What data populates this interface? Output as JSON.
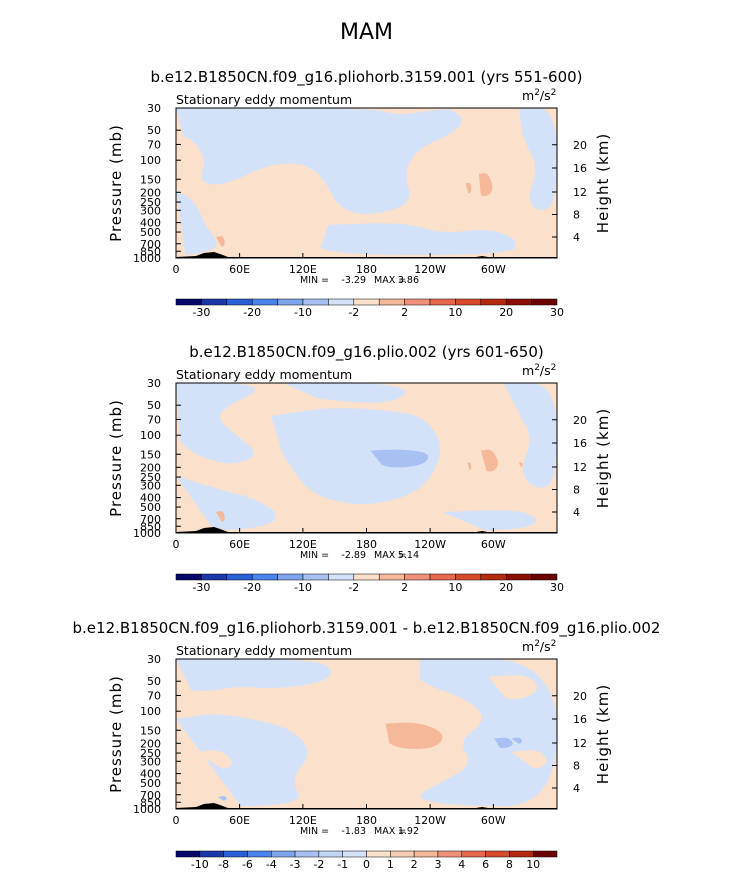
{
  "page_title": "MAM",
  "units_base": "m",
  "units_sup1": "2",
  "units_mid": "/s",
  "units_sup2": "2",
  "chart_data": [
    {
      "type": "heatmap",
      "title": "b.e12.B1850CN.f09_g16.pliohorb.3159.001 (yrs 551-600)",
      "left_string": "Stationary eddy momentum",
      "units": "m2/s2",
      "xlabel": "",
      "ylabel": "Pressure (mb)",
      "ylabel_right": "Height (km)",
      "xticks": [
        "0",
        "60E",
        "120E",
        "180",
        "120W",
        "60W"
      ],
      "yticks": [
        "30",
        "50",
        "70",
        "100",
        "150",
        "200",
        "250",
        "300",
        "400",
        "500",
        "700",
        "850",
        "1000"
      ],
      "yticks_right": [
        "4",
        "8",
        "12",
        "16",
        "20"
      ],
      "min_label": "MIN =",
      "min_value": "-3.29",
      "max_label": "MAX =",
      "max_value": "3.86",
      "colorbar": {
        "labels": [
          "-30",
          "-20",
          "-10",
          "-2",
          "2",
          "10",
          "20",
          "30"
        ],
        "colors": [
          "#08086b",
          "#1c38a8",
          "#2a5fd6",
          "#4a84ec",
          "#7ea4ee",
          "#a9c0f3",
          "#d3e2f8",
          "#fbe0cc",
          "#f5b898",
          "#f0907a",
          "#e8684e",
          "#d84a2c",
          "#b32a10",
          "#8a0f02",
          "#6b0000"
        ]
      }
    },
    {
      "type": "heatmap",
      "title": "b.e12.B1850CN.f09_g16.plio.002 (yrs 601-650)",
      "left_string": "Stationary eddy momentum",
      "units": "m2/s2",
      "xlabel": "",
      "ylabel": "Pressure (mb)",
      "ylabel_right": "Height (km)",
      "xticks": [
        "0",
        "60E",
        "120E",
        "180",
        "120W",
        "60W"
      ],
      "yticks": [
        "30",
        "50",
        "70",
        "100",
        "150",
        "200",
        "250",
        "300",
        "400",
        "500",
        "700",
        "850",
        "1000"
      ],
      "yticks_right": [
        "4",
        "8",
        "12",
        "16",
        "20"
      ],
      "min_label": "MIN =",
      "min_value": "-2.89",
      "max_label": "MAX =",
      "max_value": "5.14",
      "colorbar": {
        "labels": [
          "-30",
          "-20",
          "-10",
          "-2",
          "2",
          "10",
          "20",
          "30"
        ],
        "colors": [
          "#08086b",
          "#1c38a8",
          "#2a5fd6",
          "#4a84ec",
          "#7ea4ee",
          "#a9c0f3",
          "#d3e2f8",
          "#fbe0cc",
          "#f5b898",
          "#f0907a",
          "#e8684e",
          "#d84a2c",
          "#b32a10",
          "#8a0f02",
          "#6b0000"
        ]
      }
    },
    {
      "type": "heatmap",
      "title": "b.e12.B1850CN.f09_g16.pliohorb.3159.001 - b.e12.B1850CN.f09_g16.plio.002",
      "left_string": "Stationary eddy momentum",
      "units": "m2/s2",
      "xlabel": "",
      "ylabel": "Pressure (mb)",
      "ylabel_right": "Height (km)",
      "xticks": [
        "0",
        "60E",
        "120E",
        "180",
        "120W",
        "60W"
      ],
      "yticks": [
        "30",
        "50",
        "70",
        "100",
        "150",
        "200",
        "250",
        "300",
        "400",
        "500",
        "700",
        "850",
        "1000"
      ],
      "yticks_right": [
        "4",
        "8",
        "12",
        "16",
        "20"
      ],
      "min_label": "MIN =",
      "min_value": "-1.83",
      "max_label": "MAX =",
      "max_value": "1.92",
      "colorbar": {
        "labels": [
          "-10",
          "-8",
          "-6",
          "-4",
          "-3",
          "-2",
          "-1",
          "0",
          "1",
          "2",
          "3",
          "4",
          "6",
          "8",
          "10"
        ],
        "colors": [
          "#08086b",
          "#1c38a8",
          "#2a5fd6",
          "#4a84ec",
          "#7ea4ee",
          "#a9c0f3",
          "#c2d5f5",
          "#d3e2f8",
          "#fbe0cc",
          "#f8ccb2",
          "#f5b898",
          "#f0907a",
          "#e8684e",
          "#d84a2c",
          "#b32a10",
          "#6b0000"
        ]
      }
    }
  ]
}
